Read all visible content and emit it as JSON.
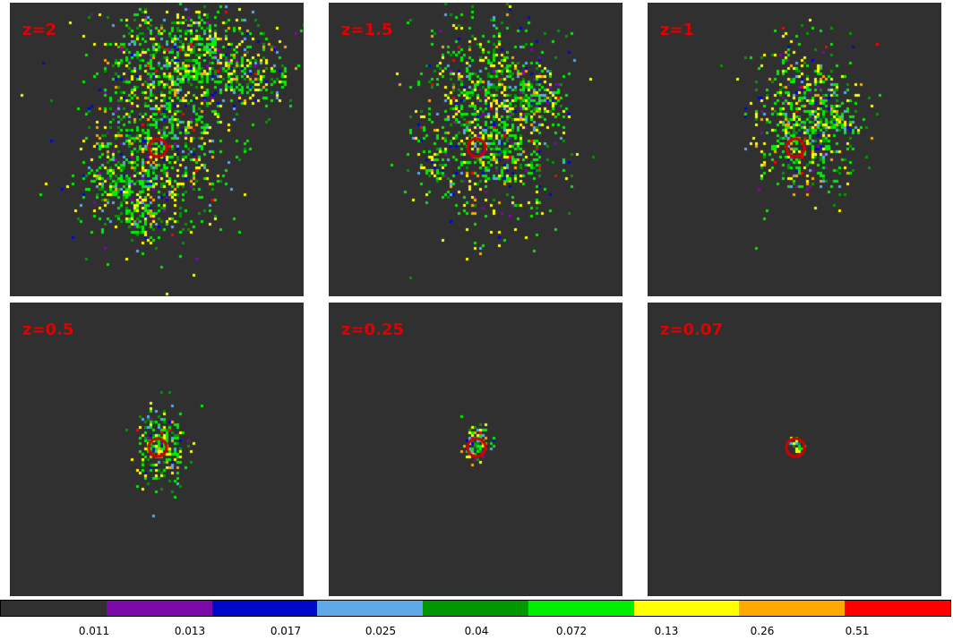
{
  "panels": [
    {
      "label": "z=2"
    },
    {
      "label": "z=1.5"
    },
    {
      "label": "z=1"
    },
    {
      "label": "z=0.5"
    },
    {
      "label": "z=0.25"
    },
    {
      "label": "z=0.07"
    }
  ],
  "colorbar": {
    "colors": [
      "#303030",
      "#7b0aa8",
      "#0008c8",
      "#5ea8e8",
      "#009800",
      "#00ee00",
      "#ffff00",
      "#ffa800",
      "#ff0000"
    ],
    "ticks": [
      "0.011",
      "0.013",
      "0.017",
      "0.025",
      "0.04",
      "0.072",
      "0.13",
      "0.26",
      "0.51"
    ]
  },
  "marker_color": "#d00000"
}
